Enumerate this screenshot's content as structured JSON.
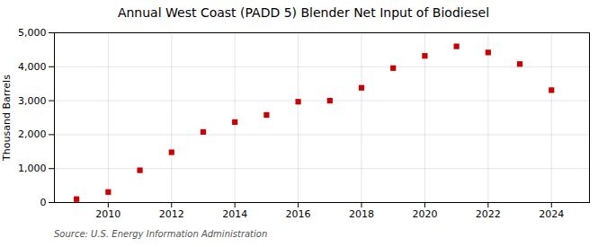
{
  "chart_data": {
    "type": "scatter",
    "title": "Annual West Coast (PADD 5) Blender Net Input of Biodiesel",
    "ylabel": "Thousand Barrels",
    "annotations": [
      "Source: U.S. Energy Information Administration"
    ],
    "x": [
      2009,
      2010,
      2011,
      2012,
      2013,
      2014,
      2015,
      2016,
      2017,
      2018,
      2019,
      2020,
      2021,
      2022,
      2023,
      2024
    ],
    "values": [
      100,
      310,
      950,
      1480,
      2080,
      2370,
      2580,
      2970,
      3000,
      3380,
      3960,
      4320,
      4600,
      4420,
      4080,
      3310
    ],
    "color": "#cc0000",
    "marker": "square",
    "xlim": [
      2008.3,
      2025.2
    ],
    "ylim": [
      0,
      5000
    ],
    "xticks": [
      2010,
      2012,
      2014,
      2016,
      2018,
      2020,
      2022,
      2024
    ],
    "yticks": [
      0,
      {
        "value": 1000,
        "label": "1,000"
      },
      {
        "value": 2000,
        "label": "2,000"
      },
      {
        "value": 3000,
        "label": "3,000"
      },
      {
        "value": 4000,
        "label": "4,000"
      },
      {
        "value": 5000,
        "label": "5,000"
      }
    ],
    "grid": true
  }
}
